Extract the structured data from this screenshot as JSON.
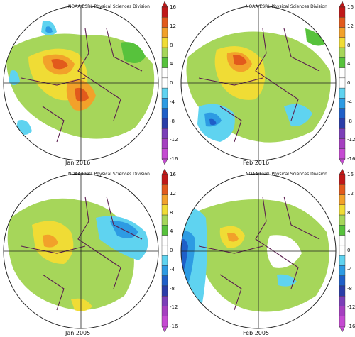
{
  "credit": "NOAA/ESRL Physical Sciences Division",
  "panels": [
    {
      "caption": "Jan 2016"
    },
    {
      "caption": "Feb 2016"
    },
    {
      "caption": "Jan 2005"
    },
    {
      "caption": "Feb 2005"
    }
  ],
  "colorbar": {
    "ticks": [
      "16",
      "12",
      "8",
      "4",
      "0",
      "-4",
      "-8",
      "-12",
      "-16"
    ],
    "colors": [
      "#c01818",
      "#e25a1c",
      "#f2a12a",
      "#f0dc35",
      "#a6d65a",
      "#57c23c",
      "#ffffff",
      "#ffffff",
      "#5fd3f0",
      "#2d9be3",
      "#1f5fc8",
      "#2a3da8",
      "#7b3fb8",
      "#a53fc0",
      "#c54ad2"
    ]
  }
}
